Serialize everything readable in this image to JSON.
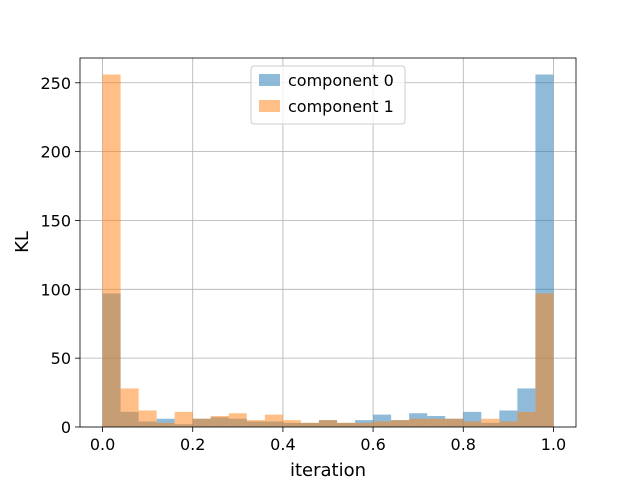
{
  "chart_data": {
    "type": "bar",
    "xlabel": "iteration",
    "ylabel": "KL",
    "xlim": [
      -0.05,
      1.05
    ],
    "ylim": [
      0,
      268
    ],
    "grid": true,
    "legend_position": "top-center",
    "bin_edges": [
      0.0,
      0.04,
      0.08,
      0.12,
      0.16,
      0.2,
      0.24,
      0.28,
      0.32,
      0.36,
      0.4,
      0.44,
      0.48,
      0.52,
      0.56,
      0.6,
      0.64,
      0.68,
      0.72,
      0.76,
      0.8,
      0.84,
      0.88,
      0.92,
      0.96,
      1.0
    ],
    "xticks": [
      0.0,
      0.2,
      0.4,
      0.6,
      0.8,
      1.0
    ],
    "xtick_labels": [
      "0.0",
      "0.2",
      "0.4",
      "0.6",
      "0.8",
      "1.0"
    ],
    "yticks": [
      0,
      50,
      100,
      150,
      200,
      250
    ],
    "ytick_labels": [
      "0",
      "50",
      "100",
      "150",
      "200",
      "250"
    ],
    "series": [
      {
        "name": "component 0",
        "color": "#1f77b4",
        "opacity": 0.5,
        "values": [
          97,
          11,
          4,
          6,
          2,
          6,
          7,
          6,
          4,
          4,
          3,
          3,
          5,
          3,
          5,
          9,
          5,
          10,
          8,
          6,
          11,
          3,
          12,
          28,
          256
        ]
      },
      {
        "name": "component 1",
        "color": "#ff7f0e",
        "opacity": 0.5,
        "values": [
          256,
          28,
          12,
          3,
          11,
          6,
          8,
          10,
          5,
          9,
          5,
          3,
          5,
          3,
          3,
          4,
          5,
          6,
          6,
          6,
          4,
          6,
          4,
          11,
          97
        ]
      }
    ]
  }
}
